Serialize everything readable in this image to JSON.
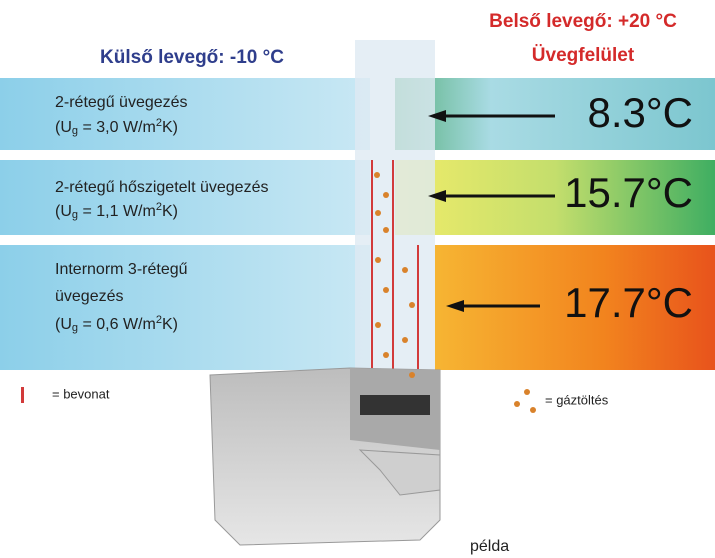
{
  "header": {
    "outside": "Külső levegő: -10 °C",
    "inside": "Belső levegő: +20 °C",
    "surface": "Üvegfelület"
  },
  "rows": [
    {
      "label": [
        "2-rétegű üvegezés"
      ],
      "u_value": {
        "before": "(U",
        "sub": "g",
        "middle": " = 3,0 W/m",
        "sup": "2",
        "after": "K)"
      },
      "temperature": "8.3°C"
    },
    {
      "label": [
        "2-rétegű hőszigetelt üvegezés"
      ],
      "u_value": {
        "before": "(U",
        "sub": "g",
        "middle": " = 1,1 W/m",
        "sup": "2",
        "after": "K)"
      },
      "temperature": "15.7°C"
    },
    {
      "label": [
        "Internorm 3-rétegű",
        "üvegezés"
      ],
      "u_value": {
        "before": "(U",
        "sub": "g",
        "middle": " = 0,6 W/m",
        "sup": "2",
        "after": "K)"
      },
      "temperature": "17.7°C"
    }
  ],
  "legend": {
    "coating": "= bevonat",
    "gas": "= gáztöltés"
  },
  "caption": "példa"
}
